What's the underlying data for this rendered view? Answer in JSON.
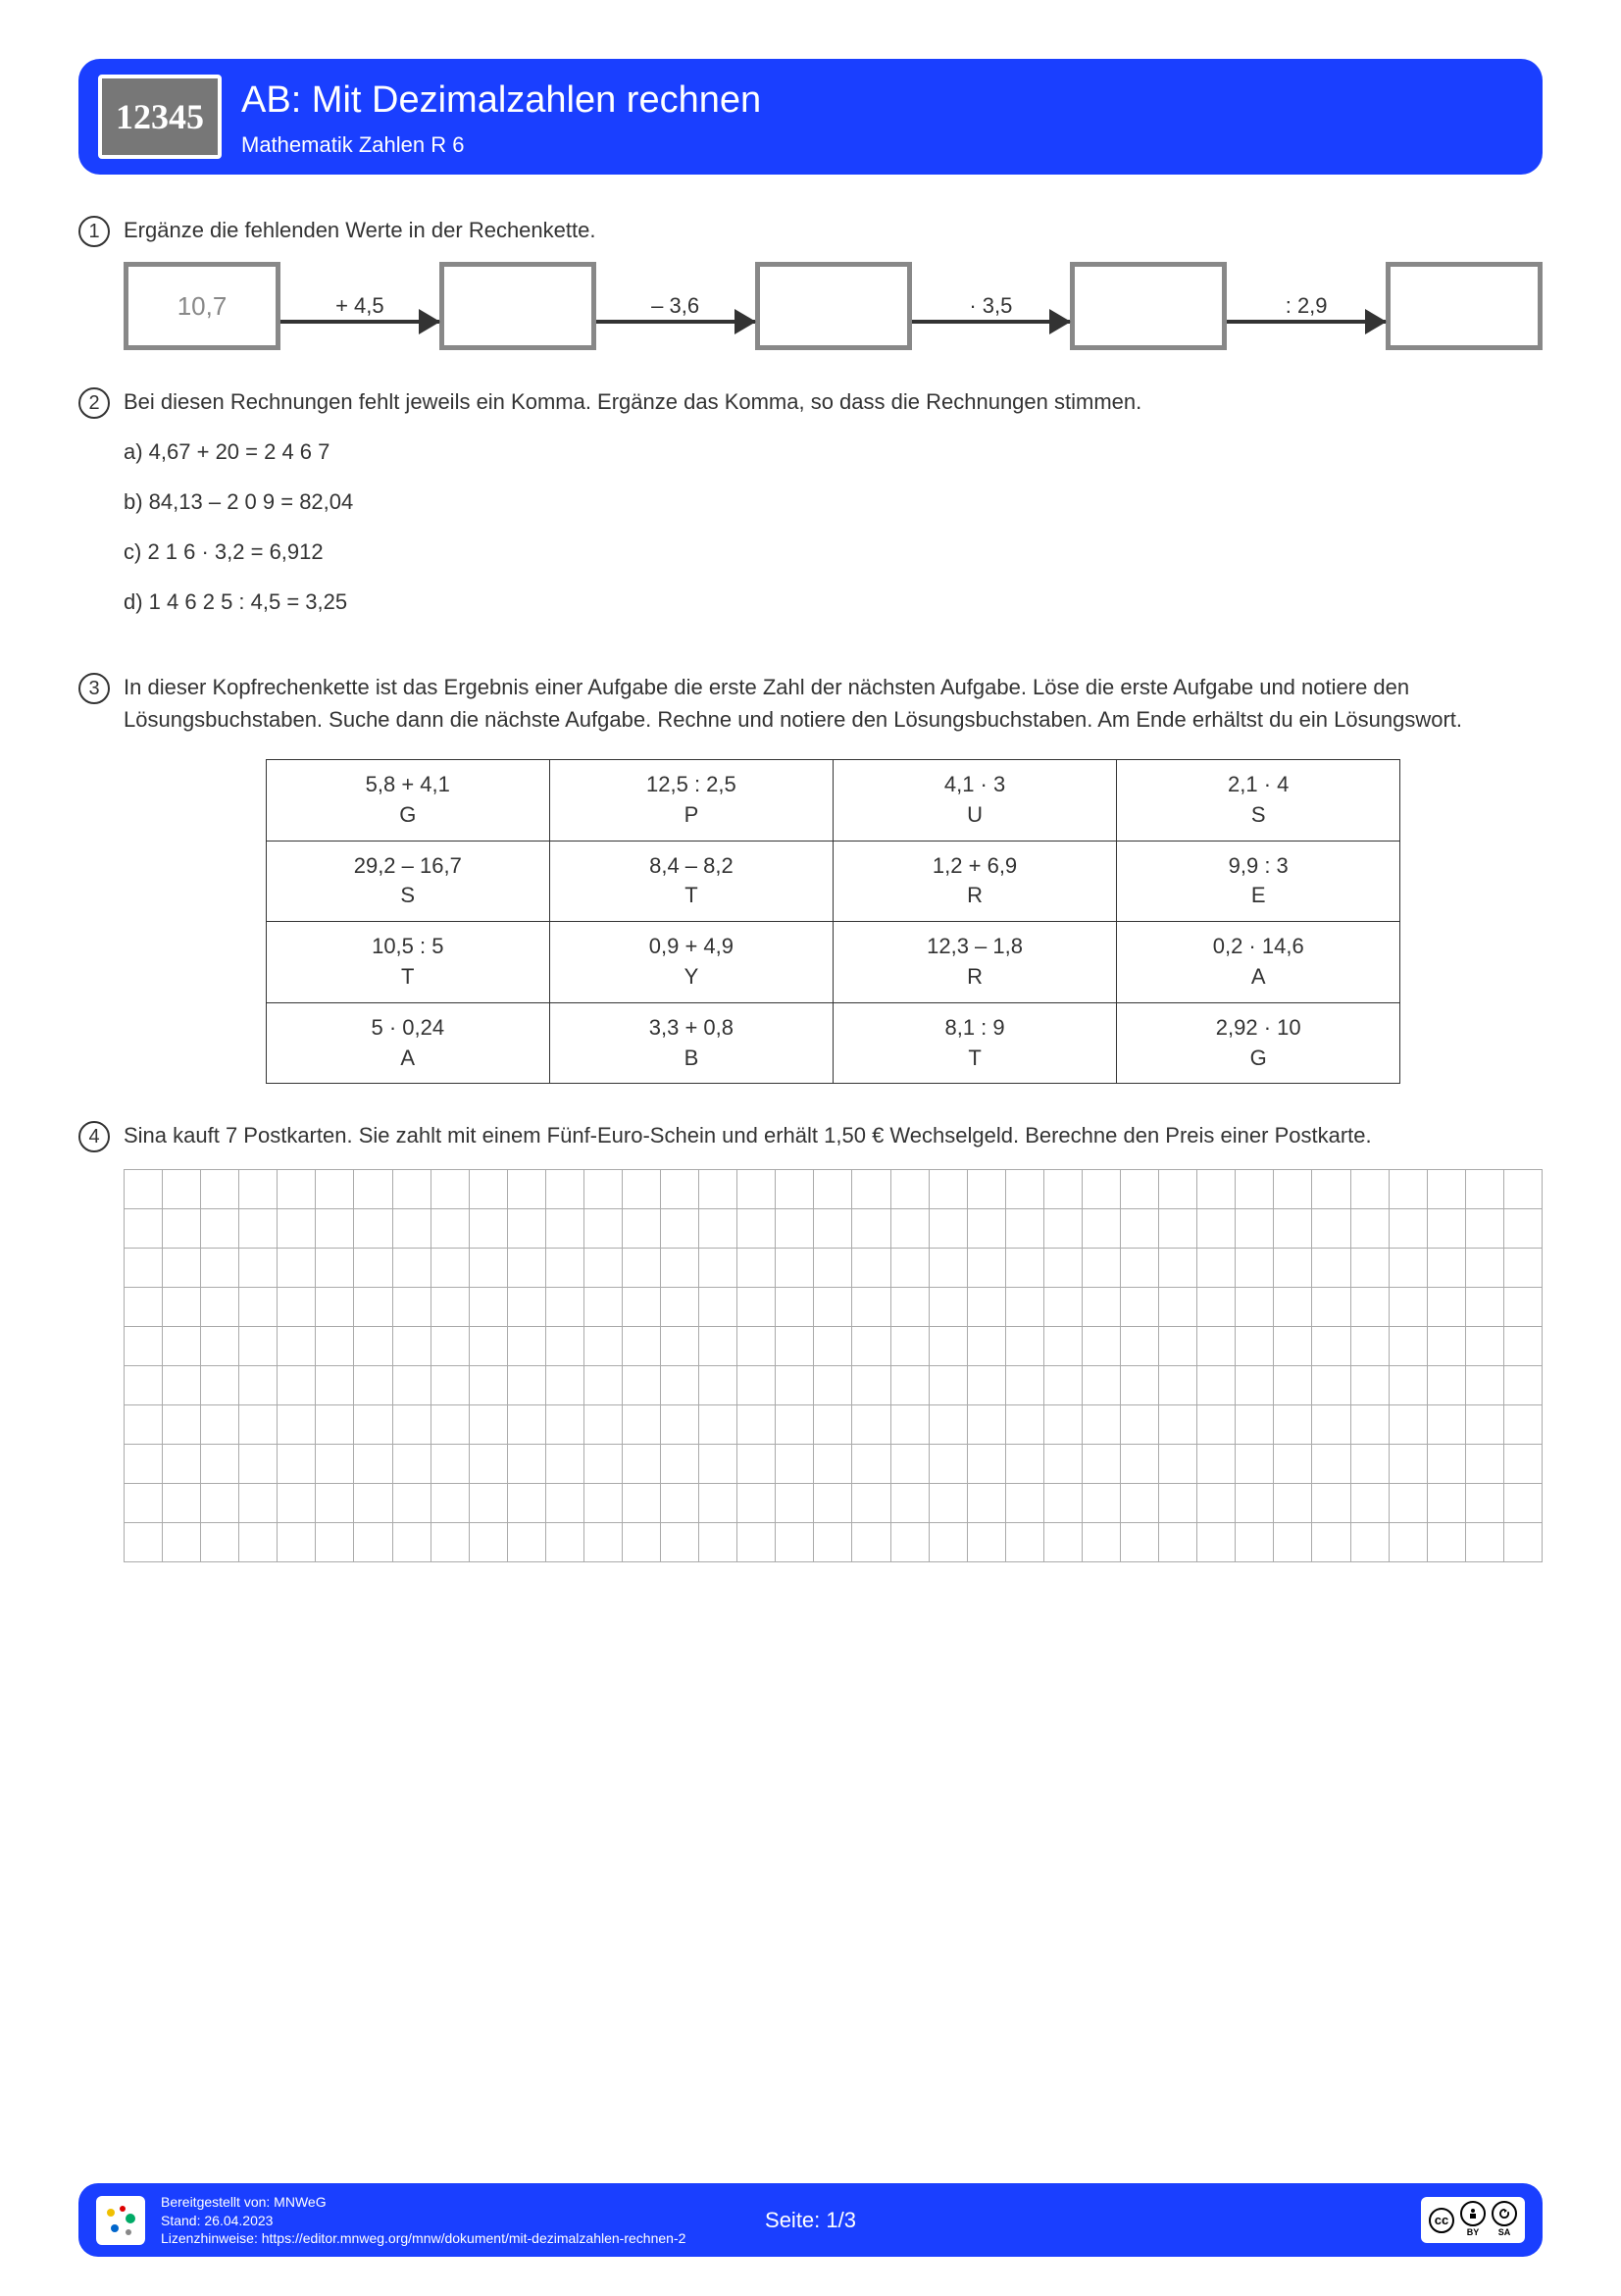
{
  "header": {
    "logo": "12345",
    "title": "AB: Mit Dezimalzahlen rechnen",
    "subtitle": "Mathematik Zahlen R 6"
  },
  "task1": {
    "num": "1",
    "prompt": "Ergänze die fehlenden Werte in der Rechenkette.",
    "start": "10,7",
    "ops": [
      "+ 4,5",
      "– 3,6",
      "· 3,5",
      ": 2,9"
    ]
  },
  "task2": {
    "num": "2",
    "prompt": "Bei diesen Rechnungen fehlt jeweils ein Komma. Ergänze das Komma, so dass die Rechnungen stimmen.",
    "items": [
      "a) 4,67 + 20 = 2 4 6 7",
      "b) 84,13 – 2 0 9 = 82,04",
      "c) 2 1 6 · 3,2 = 6,912",
      "d) 1 4 6 2 5 : 4,5 = 3,25"
    ]
  },
  "task3": {
    "num": "3",
    "prompt": "In dieser Kopfrechenkette ist das Ergebnis einer Aufgabe die erste Zahl der nächsten Aufgabe. Löse die erste Aufgabe und notiere den Lösungsbuchstaben. Suche dann die nächste Aufgabe. Rechne und notiere den Lösungsbuchstaben. Am Ende erhältst du ein Lösungswort.",
    "cells": [
      [
        {
          "e": "5,8 + 4,1",
          "l": "G"
        },
        {
          "e": "12,5 : 2,5",
          "l": "P"
        },
        {
          "e": "4,1 · 3",
          "l": "U"
        },
        {
          "e": "2,1 · 4",
          "l": "S"
        }
      ],
      [
        {
          "e": "29,2 – 16,7",
          "l": "S"
        },
        {
          "e": "8,4 – 8,2",
          "l": "T"
        },
        {
          "e": "1,2 + 6,9",
          "l": "R"
        },
        {
          "e": "9,9 : 3",
          "l": "E"
        }
      ],
      [
        {
          "e": "10,5 : 5",
          "l": "T"
        },
        {
          "e": "0,9 + 4,9",
          "l": "Y"
        },
        {
          "e": "12,3 – 1,8",
          "l": "R"
        },
        {
          "e": "0,2 · 14,6",
          "l": "A"
        }
      ],
      [
        {
          "e": "5 · 0,24",
          "l": "A"
        },
        {
          "e": "3,3 + 0,8",
          "l": "B"
        },
        {
          "e": "8,1 : 9",
          "l": "T"
        },
        {
          "e": "2,92 · 10",
          "l": "G"
        }
      ]
    ]
  },
  "task4": {
    "num": "4",
    "prompt": "Sina kauft 7 Postkarten. Sie zahlt mit einem Fünf-Euro-Schein und erhält 1,50 € Wechselgeld. Berechne den Preis einer Postkarte.",
    "grid_rows": 10,
    "grid_cols": 37
  },
  "footer": {
    "provider": "Bereitgestellt von: MNWeG",
    "date": "Stand: 26.04.2023",
    "license": "Lizenzhinweise: https://editor.mnweg.org/mnw/dokument/mit-dezimalzahlen-rechnen-2",
    "page": "Seite: 1/3",
    "cc": "cc",
    "by": "BY",
    "sa": "SA"
  }
}
